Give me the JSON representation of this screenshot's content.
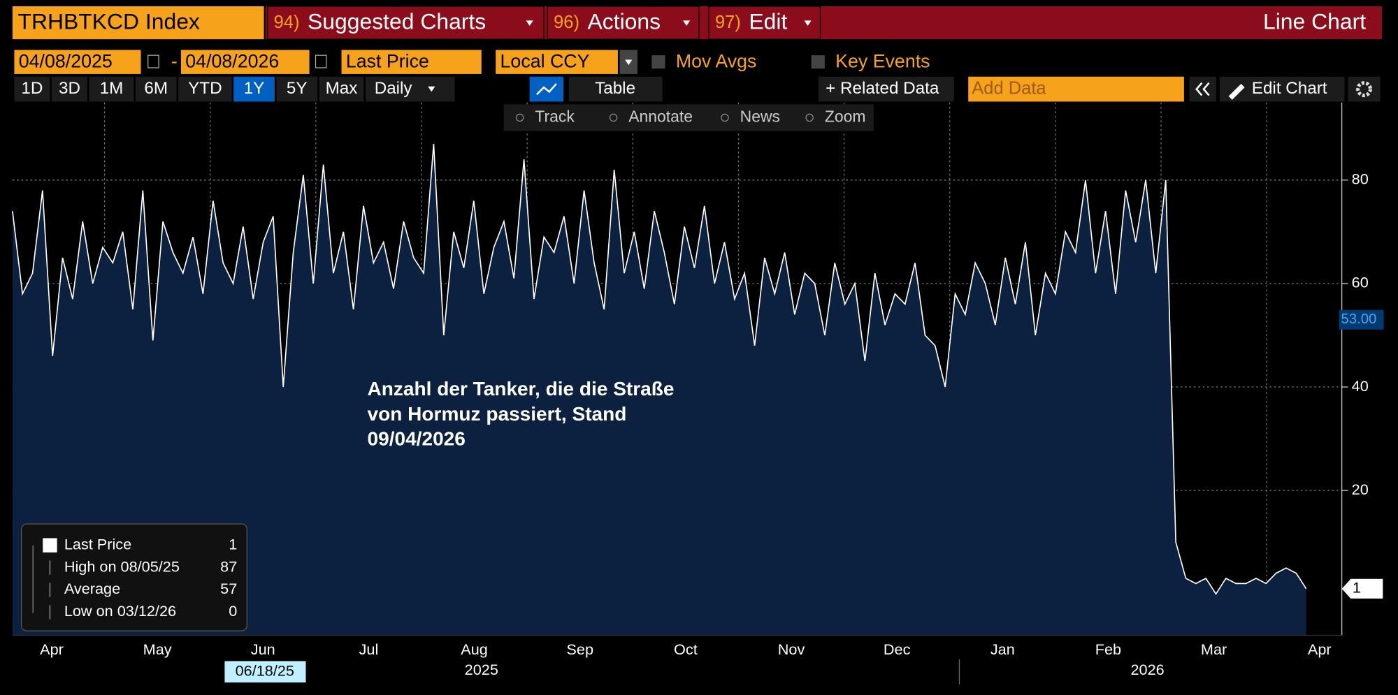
{
  "header": {
    "ticker": "TRHBTKCD Index",
    "menu": [
      {
        "num": "94)",
        "label": "Suggested Charts"
      },
      {
        "num": "96)",
        "label": "Actions"
      },
      {
        "num": "97)",
        "label": "Edit"
      }
    ],
    "view": "Line Chart"
  },
  "controls": {
    "start_date": "04/08/2025",
    "dash": "-",
    "end_date": "04/08/2026",
    "field": "Last Price",
    "currency": "Local CCY",
    "mov_avgs": "Mov Avgs",
    "key_events": "Key Events"
  },
  "toolbar": {
    "periods": [
      "1D",
      "3D",
      "1M",
      "6M",
      "YTD",
      "1Y",
      "5Y",
      "Max"
    ],
    "selected_period": "1Y",
    "frequency": "Daily",
    "table": "Table",
    "related": "+ Related Data",
    "add_data": "Add Data",
    "edit_chart": "Edit Chart"
  },
  "tools": [
    "Track",
    "Annotate",
    "News",
    "Zoom"
  ],
  "chart_data": {
    "type": "line",
    "color": "#ffffff",
    "area_color": "#0c2140",
    "annotation": [
      "Anzahl der Tanker, die die Straße",
      "von Hormuz passiert, Stand",
      "09/04/2026"
    ],
    "values": [
      74,
      58,
      62,
      78,
      46,
      65,
      57,
      72,
      60,
      67,
      64,
      70,
      55,
      78,
      49,
      72,
      66,
      62,
      69,
      58,
      76,
      64,
      60,
      71,
      57,
      68,
      73,
      40,
      66,
      81,
      60,
      83,
      62,
      70,
      55,
      75,
      64,
      68,
      59,
      72,
      65,
      62,
      87,
      50,
      70,
      63,
      76,
      58,
      67,
      72,
      61,
      84,
      57,
      69,
      66,
      73,
      60,
      78,
      64,
      55,
      82,
      62,
      70,
      59,
      74,
      66,
      56,
      71,
      63,
      75,
      60,
      68,
      57,
      62,
      48,
      65,
      58,
      66,
      54,
      62,
      60,
      50,
      64,
      56,
      60,
      45,
      62,
      52,
      58,
      56,
      64,
      50,
      48,
      40,
      58,
      54,
      64,
      60,
      52,
      65,
      56,
      68,
      50,
      62,
      58,
      70,
      66,
      80,
      62,
      74,
      58,
      78,
      68,
      80,
      62,
      80,
      10,
      3,
      2,
      3,
      0,
      3,
      2,
      2,
      3,
      2,
      4,
      5,
      4,
      1
    ],
    "ylim": [
      -8,
      95
    ],
    "yticks": [
      20,
      40,
      60,
      80
    ],
    "grid": true,
    "months": [
      "Apr",
      "May",
      "Jun",
      "Jul",
      "Aug",
      "Sep",
      "Oct",
      "Nov",
      "Dec",
      "Jan",
      "Feb",
      "Mar",
      "Apr"
    ],
    "years": [
      "2025",
      "2026"
    ],
    "date_marker": "06/18/25",
    "marker": {
      "value": 53,
      "label": "53.00"
    },
    "legend": [
      {
        "name": "Last Price",
        "value": 1
      },
      {
        "name": "High on 08/05/25",
        "value": 87
      },
      {
        "name": "Average",
        "value": 57
      },
      {
        "name": "Low on 03/12/26",
        "value": 0
      }
    ]
  }
}
